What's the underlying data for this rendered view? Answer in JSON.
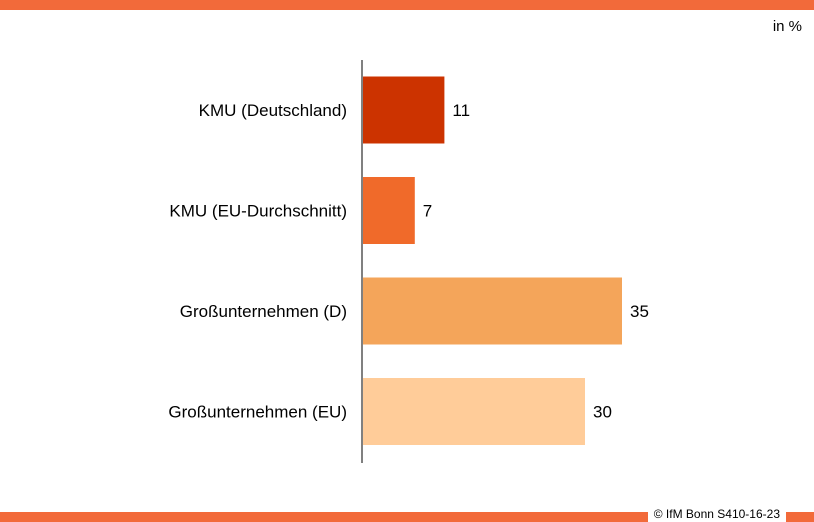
{
  "unit_label": "in %",
  "credit": "© IfM  Bonn S410-16-23",
  "chart_data": {
    "type": "bar",
    "orientation": "horizontal",
    "categories": [
      "KMU (Deutschland)",
      "KMU (EU-Durchschnitt)",
      "Großunternehmen (D)",
      "Großunternehmen (EU)"
    ],
    "values": [
      11,
      7,
      35,
      30
    ],
    "colors": [
      "#cc3300",
      "#f06a2a",
      "#f4a55a",
      "#ffcc99"
    ],
    "xlim": [
      0,
      40
    ],
    "grid": false,
    "legend": "none"
  }
}
